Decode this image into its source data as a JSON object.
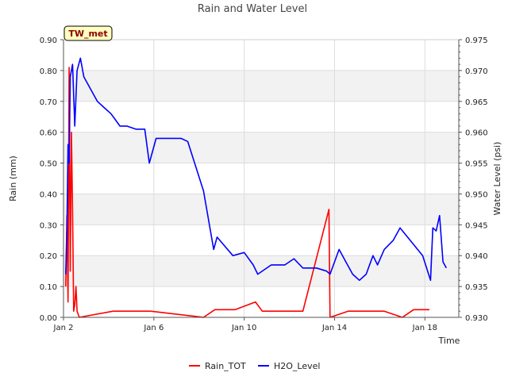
{
  "chart_data": {
    "type": "line",
    "title": "Rain and Water Level",
    "site_badge": "TW_met",
    "xlabel": "Time",
    "ylabel_left": "Rain (mm)",
    "ylabel_right": "Water Level (psi)",
    "x_domain": [
      "2024-01-02",
      "2024-01-19.5"
    ],
    "x_ticks": [
      {
        "label": "Jan 2",
        "x": "2024-01-02"
      },
      {
        "label": "Jan 6",
        "x": "2024-01-06"
      },
      {
        "label": "Jan 10",
        "x": "2024-01-10"
      },
      {
        "label": "Jan 14",
        "x": "2024-01-14"
      },
      {
        "label": "Jan 18",
        "x": "2024-01-18"
      }
    ],
    "ylim_left": [
      0,
      0.9
    ],
    "ylim_right": [
      0.93,
      0.975
    ],
    "yticks_left": [
      "0.00",
      "0.10",
      "0.20",
      "0.30",
      "0.40",
      "0.50",
      "0.60",
      "0.70",
      "0.80",
      "0.90"
    ],
    "yticks_right": [
      "0.930",
      "0.935",
      "0.940",
      "0.945",
      "0.950",
      "0.955",
      "0.960",
      "0.965",
      "0.970",
      "0.975"
    ],
    "grid": true,
    "legend_position": "bottom-center",
    "series": [
      {
        "name": "Rain_TOT",
        "axis": "left",
        "color": "#ff0000",
        "points": [
          [
            2.1,
            0.1
          ],
          [
            2.15,
            0.33
          ],
          [
            2.2,
            0.05
          ],
          [
            2.25,
            0.81
          ],
          [
            2.3,
            0.15
          ],
          [
            2.35,
            0.6
          ],
          [
            2.4,
            0.35
          ],
          [
            2.45,
            0.02
          ],
          [
            2.5,
            0.04
          ],
          [
            2.55,
            0.1
          ],
          [
            2.6,
            0.02
          ],
          [
            2.7,
            0.0
          ],
          [
            4.2,
            0.02
          ],
          [
            4.4,
            0.02
          ],
          [
            4.9,
            0.02
          ],
          [
            5.0,
            0.02
          ],
          [
            5.1,
            0.02
          ],
          [
            5.7,
            0.02
          ],
          [
            5.85,
            0.02
          ],
          [
            8.2,
            0.0
          ],
          [
            8.7,
            0.025
          ],
          [
            9.6,
            0.025
          ],
          [
            10.5,
            0.05
          ],
          [
            10.8,
            0.02
          ],
          [
            12.6,
            0.02
          ],
          [
            13.75,
            0.35
          ],
          [
            13.8,
            0.0
          ],
          [
            14.6,
            0.02
          ],
          [
            15.6,
            0.02
          ],
          [
            16.2,
            0.02
          ],
          [
            17.0,
            0.0
          ],
          [
            17.5,
            0.025
          ],
          [
            18.2,
            0.025
          ]
        ]
      },
      {
        "name": "H2O_Level",
        "axis": "right",
        "color": "#0000ff",
        "points": [
          [
            2.1,
            0.937
          ],
          [
            2.15,
            0.944
          ],
          [
            2.2,
            0.958
          ],
          [
            2.25,
            0.955
          ],
          [
            2.3,
            0.969
          ],
          [
            2.4,
            0.971
          ],
          [
            2.5,
            0.961
          ],
          [
            2.6,
            0.97
          ],
          [
            2.75,
            0.972
          ],
          [
            2.9,
            0.969
          ],
          [
            3.2,
            0.967
          ],
          [
            3.5,
            0.965
          ],
          [
            3.8,
            0.964
          ],
          [
            4.1,
            0.963
          ],
          [
            4.3,
            0.962
          ],
          [
            4.5,
            0.961
          ],
          [
            4.8,
            0.961
          ],
          [
            5.2,
            0.9605
          ],
          [
            5.6,
            0.9605
          ],
          [
            5.8,
            0.955
          ],
          [
            5.95,
            0.957
          ],
          [
            6.1,
            0.959
          ],
          [
            6.4,
            0.959
          ],
          [
            6.8,
            0.959
          ],
          [
            7.2,
            0.959
          ],
          [
            7.5,
            0.9585
          ],
          [
            8.2,
            0.9505
          ],
          [
            8.65,
            0.941
          ],
          [
            8.8,
            0.943
          ],
          [
            9.5,
            0.94
          ],
          [
            10.0,
            0.9405
          ],
          [
            10.4,
            0.9385
          ],
          [
            10.6,
            0.937
          ],
          [
            11.2,
            0.9385
          ],
          [
            11.8,
            0.9385
          ],
          [
            12.2,
            0.9395
          ],
          [
            12.6,
            0.938
          ],
          [
            13.2,
            0.938
          ],
          [
            13.65,
            0.9375
          ],
          [
            13.8,
            0.937
          ],
          [
            13.95,
            0.9385
          ],
          [
            14.2,
            0.941
          ],
          [
            14.5,
            0.939
          ],
          [
            14.8,
            0.937
          ],
          [
            15.1,
            0.936
          ],
          [
            15.4,
            0.937
          ],
          [
            15.7,
            0.94
          ],
          [
            15.9,
            0.9385
          ],
          [
            16.2,
            0.941
          ],
          [
            16.6,
            0.9425
          ],
          [
            16.9,
            0.9445
          ],
          [
            17.9,
            0.94
          ],
          [
            18.25,
            0.936
          ],
          [
            18.35,
            0.9445
          ],
          [
            18.5,
            0.944
          ],
          [
            18.65,
            0.9465
          ],
          [
            18.8,
            0.939
          ],
          [
            18.95,
            0.938
          ]
        ]
      }
    ]
  }
}
